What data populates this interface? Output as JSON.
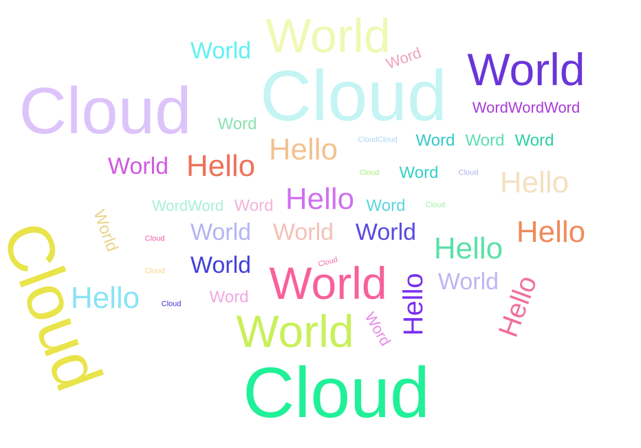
{
  "words": [
    {
      "id": "w1",
      "text": "World",
      "color": "#f0f8b4"
    },
    {
      "id": "w2",
      "text": "World",
      "color": "#5ff2f2"
    },
    {
      "id": "w3",
      "text": "Word",
      "color": "#f0a0c0"
    },
    {
      "id": "w4",
      "text": "World",
      "color": "#6a35d8"
    },
    {
      "id": "w5",
      "text": "Cloud",
      "color": "#dcc4fa"
    },
    {
      "id": "w6",
      "text": "Cloud",
      "color": "#c4f4f4"
    },
    {
      "id": "w7",
      "text": "WordWordWord",
      "color": "#a83cd8"
    },
    {
      "id": "w8",
      "text": "Word",
      "color": "#8ce0b0"
    },
    {
      "id": "w9",
      "text": "Hello",
      "color": "#f2c290"
    },
    {
      "id": "w10",
      "text": "CloudCloud",
      "color": "#a8d4f4"
    },
    {
      "id": "w11",
      "text": "Word",
      "color": "#34c8c8"
    },
    {
      "id": "w12",
      "text": "Word",
      "color": "#5ae0b4"
    },
    {
      "id": "w13",
      "text": "Word",
      "color": "#2ad0a0"
    },
    {
      "id": "w14",
      "text": "World",
      "color": "#d05ae0"
    },
    {
      "id": "w15",
      "text": "Hello",
      "color": "#f0705a"
    },
    {
      "id": "w16",
      "text": "Cloud",
      "color": "#a8f078"
    },
    {
      "id": "w17",
      "text": "Word",
      "color": "#34d0c8"
    },
    {
      "id": "w18",
      "text": "Cloud",
      "color": "#aab0f0"
    },
    {
      "id": "w19",
      "text": "Hello",
      "color": "#f4e0c0"
    },
    {
      "id": "w20",
      "text": "World",
      "color": "#e8d488"
    },
    {
      "id": "w21",
      "text": "WordWord",
      "color": "#a8f0d8"
    },
    {
      "id": "w22",
      "text": "Word",
      "color": "#f4b4d8"
    },
    {
      "id": "w23",
      "text": "Hello",
      "color": "#d070f0"
    },
    {
      "id": "w24",
      "text": "Word",
      "color": "#5ad4e0"
    },
    {
      "id": "w25",
      "text": "Cloud",
      "color": "#a0f0a0"
    },
    {
      "id": "w26",
      "text": "Cloud",
      "color": "#e8e44a"
    },
    {
      "id": "w27",
      "text": "Cloud",
      "color": "#f05aa8"
    },
    {
      "id": "w28",
      "text": "World",
      "color": "#b4b4f4"
    },
    {
      "id": "w29",
      "text": "World",
      "color": "#f4c0b8"
    },
    {
      "id": "w30",
      "text": "World",
      "color": "#5a48e0"
    },
    {
      "id": "w31",
      "text": "Hello",
      "color": "#f08a5a"
    },
    {
      "id": "w32",
      "text": "Hello",
      "color": "#5ae0a8"
    },
    {
      "id": "w33",
      "text": "Cloud",
      "color": "#f4d488"
    },
    {
      "id": "w34",
      "text": "World",
      "color": "#4040d8"
    },
    {
      "id": "w35",
      "text": "Cloud",
      "color": "#f070a8"
    },
    {
      "id": "w36",
      "text": "World",
      "color": "#f8609a"
    },
    {
      "id": "w37",
      "text": "Hello",
      "color": "#7a30f0"
    },
    {
      "id": "w38",
      "text": "World",
      "color": "#c0b4f4"
    },
    {
      "id": "w39",
      "text": "Hello",
      "color": "#f0709a"
    },
    {
      "id": "w40",
      "text": "Hello",
      "color": "#88e4f4"
    },
    {
      "id": "w41",
      "text": "Cloud",
      "color": "#3a30c8"
    },
    {
      "id": "w42",
      "text": "Word",
      "color": "#f0a8e0"
    },
    {
      "id": "w43",
      "text": "World",
      "color": "#c8f05a"
    },
    {
      "id": "w44",
      "text": "Word",
      "color": "#e88ae8"
    },
    {
      "id": "w45",
      "text": "Cloud",
      "color": "#20f098"
    }
  ]
}
